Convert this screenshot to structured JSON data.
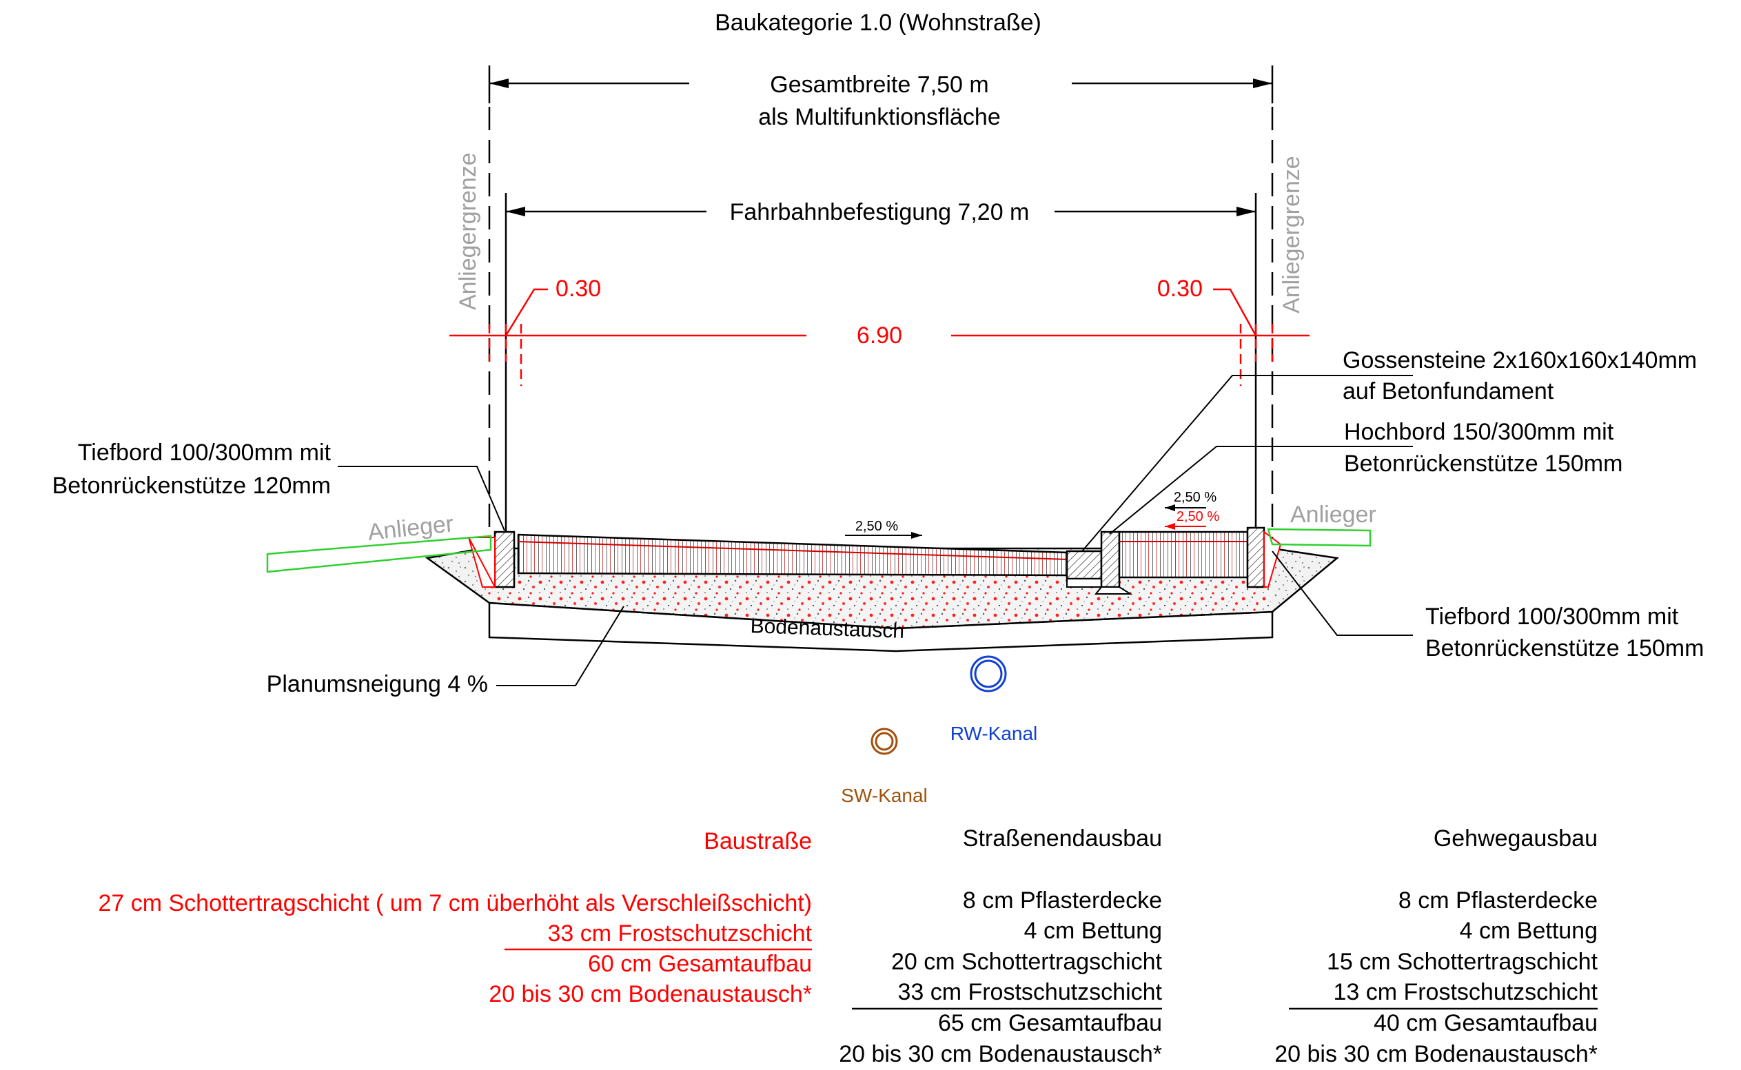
{
  "title": "Baukategorie 1.0 (Wohnstraße)",
  "dims": {
    "total_line1": "Gesamtbreite 7,50 m",
    "total_line2": "als Multifunktionsfläche",
    "road": "Fahrbahnbefestigung 7,20 m",
    "left_margin": "0.30",
    "right_margin": "0.30",
    "middle": "6.90"
  },
  "boundary_left": "Anliegergrenze",
  "boundary_right": "Anliegergrenze",
  "anlieger_left": "Anlieger",
  "anlieger_right": "Anlieger",
  "callouts": {
    "tiefbord_left_1": "Tiefbord 100/300mm mit",
    "tiefbord_left_2": "Betonrückenstütze 120mm",
    "gossen_1": "Gossensteine 2x160x160x140mm",
    "gossen_2": "auf Betonfundament",
    "hochbord_1": "Hochbord 150/300mm mit",
    "hochbord_2": "Betonrückenstütze 150mm",
    "tiefbord_right_1": "Tiefbord 100/300mm mit",
    "tiefbord_right_2": "Betonrückenstütze 150mm",
    "planum": "Planumsneigung 4 %",
    "bodenaustausch": "Bodenaustausch"
  },
  "slopes": {
    "road": "2,50 %",
    "walk_black": "2,50 %",
    "walk_red": "2,50 %"
  },
  "pipes": {
    "rw": "RW-Kanal",
    "sw": "SW-Kanal"
  },
  "colors": {
    "red": "#ff0000",
    "green": "#2fd02f",
    "gray": "#a0a0a0",
    "rw_blue": "#1040d0",
    "sw_brown": "#a0500a"
  },
  "tables": {
    "baustrasse": {
      "header": "Baustraße",
      "l1": "27 cm Schottertragschicht ( um 7 cm überhöht als Verschleißschicht)",
      "l2": "33 cm Frostschutzschicht",
      "l3": "60 cm Gesamtaufbau",
      "l4": "20 bis 30 cm Bodenaustausch*"
    },
    "strasse": {
      "header": "Straßenendausbau",
      "l1": "8 cm Pflasterdecke",
      "l2": "4 cm Bettung",
      "l3": "20 cm Schottertragschicht",
      "l4": "33 cm Frostschutzschicht",
      "l5": "65 cm Gesamtaufbau",
      "l6": "20 bis 30 cm Bodenaustausch*"
    },
    "gehweg": {
      "header": "Gehwegausbau",
      "l1": "8 cm Pflasterdecke",
      "l2": "4 cm Bettung",
      "l3": "15 cm Schottertragschicht",
      "l4": "13 cm Frostschutzschicht",
      "l5": "40 cm Gesamtaufbau",
      "l6": "20 bis 30 cm Bodenaustausch*"
    }
  }
}
